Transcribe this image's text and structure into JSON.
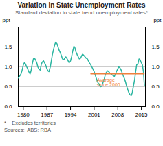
{
  "chart_data": {
    "type": "line",
    "title": "Variation in State Unemployment Rates",
    "subtitle": "Standard deviation in state trend unemployment rates*",
    "ylabel": "ppt",
    "y2label": "ppt",
    "footnotes": [
      "*    Excludes territories",
      "Sources:  ABS; RBA"
    ],
    "xlim": [
      1978.5,
      2016.2
    ],
    "xticks": [
      1980,
      1987,
      1994,
      2001,
      2008,
      2015
    ],
    "ylim": [
      0.0,
      2.0
    ],
    "yticks": [
      {
        "value": 0.0,
        "label": "0.0"
      },
      0.5,
      {
        "value": 1.0,
        "label": "1.0"
      },
      1.5
    ],
    "y2lim": [
      0.0,
      2.0
    ],
    "y2ticks": [
      {
        "value": 0.0,
        "label": "0.0"
      },
      0.5,
      {
        "value": 1.0,
        "label": "1.0"
      },
      1.5
    ],
    "grid": "y",
    "series": [
      {
        "color": "#2ab5a0",
        "x": [
          1978.5,
          1979.0,
          1979.3,
          1979.6,
          1980.0,
          1980.3,
          1980.6,
          1981.0,
          1981.3,
          1981.6,
          1982.0,
          1982.3,
          1982.6,
          1983.0,
          1983.3,
          1983.6,
          1984.0,
          1984.3,
          1984.6,
          1985.0,
          1985.3,
          1985.6,
          1986.0,
          1986.3,
          1986.6,
          1987.0,
          1987.3,
          1987.6,
          1988.0,
          1988.3,
          1988.6,
          1989.0,
          1989.3,
          1989.6,
          1990.0,
          1990.3,
          1990.6,
          1991.0,
          1991.3,
          1991.6,
          1992.0,
          1992.3,
          1992.6,
          1993.0,
          1993.3,
          1993.6,
          1994.0,
          1994.3,
          1994.6,
          1995.0,
          1995.3,
          1995.6,
          1996.0,
          1996.3,
          1996.6,
          1997.0,
          1997.3,
          1997.6,
          1998.0,
          1998.3,
          1998.6,
          1999.0,
          1999.3,
          1999.6,
          2000.0,
          2000.3,
          2000.6,
          2001.0,
          2001.3,
          2001.6,
          2002.0,
          2002.3,
          2002.6,
          2003.0,
          2003.3,
          2003.6,
          2004.0,
          2004.3,
          2004.6,
          2005.0,
          2005.3,
          2005.6,
          2006.0,
          2006.3,
          2006.6,
          2007.0,
          2007.3,
          2007.6,
          2008.0,
          2008.3,
          2008.6,
          2009.0,
          2009.3,
          2009.6,
          2010.0,
          2010.3,
          2010.6,
          2011.0,
          2011.3,
          2011.6,
          2012.0,
          2012.3,
          2012.6,
          2013.0,
          2013.3,
          2013.6,
          2014.0,
          2014.3,
          2014.6,
          2015.0,
          2015.3,
          2015.6,
          2015.9
        ],
        "values": [
          0.72,
          0.78,
          0.82,
          0.9,
          1.05,
          1.1,
          1.08,
          1.0,
          0.95,
          0.88,
          0.82,
          0.9,
          1.05,
          1.2,
          1.22,
          1.18,
          1.1,
          1.0,
          0.95,
          0.92,
          1.05,
          1.12,
          1.15,
          1.1,
          1.05,
          0.95,
          0.9,
          0.88,
          1.0,
          1.15,
          1.3,
          1.45,
          1.55,
          1.62,
          1.58,
          1.5,
          1.42,
          1.35,
          1.28,
          1.2,
          1.18,
          1.22,
          1.25,
          1.2,
          1.15,
          1.1,
          1.15,
          1.25,
          1.38,
          1.52,
          1.48,
          1.38,
          1.3,
          1.25,
          1.2,
          1.22,
          1.28,
          1.32,
          1.28,
          1.25,
          1.22,
          1.2,
          1.15,
          1.1,
          1.05,
          1.0,
          0.95,
          0.88,
          0.8,
          0.72,
          0.62,
          0.58,
          0.54,
          0.5,
          0.52,
          0.6,
          0.7,
          0.8,
          0.86,
          0.9,
          0.88,
          0.85,
          0.82,
          0.8,
          0.78,
          0.76,
          0.82,
          0.88,
          0.95,
          1.0,
          0.98,
          0.92,
          0.85,
          0.78,
          0.7,
          0.62,
          0.52,
          0.42,
          0.35,
          0.3,
          0.28,
          0.35,
          0.5,
          0.68,
          0.88,
          1.05,
          1.08,
          1.2,
          1.18,
          1.1,
          1.05,
          0.88,
          0.52
        ]
      },
      {
        "color": "#f0803c",
        "x": [
          2000.0,
          2015.8
        ],
        "values": [
          0.825,
          0.825
        ]
      }
    ],
    "annotations": [
      {
        "text": "Average\nsince 2000",
        "x": 2001.8,
        "y": 0.72,
        "color": "#f0803c"
      }
    ]
  }
}
